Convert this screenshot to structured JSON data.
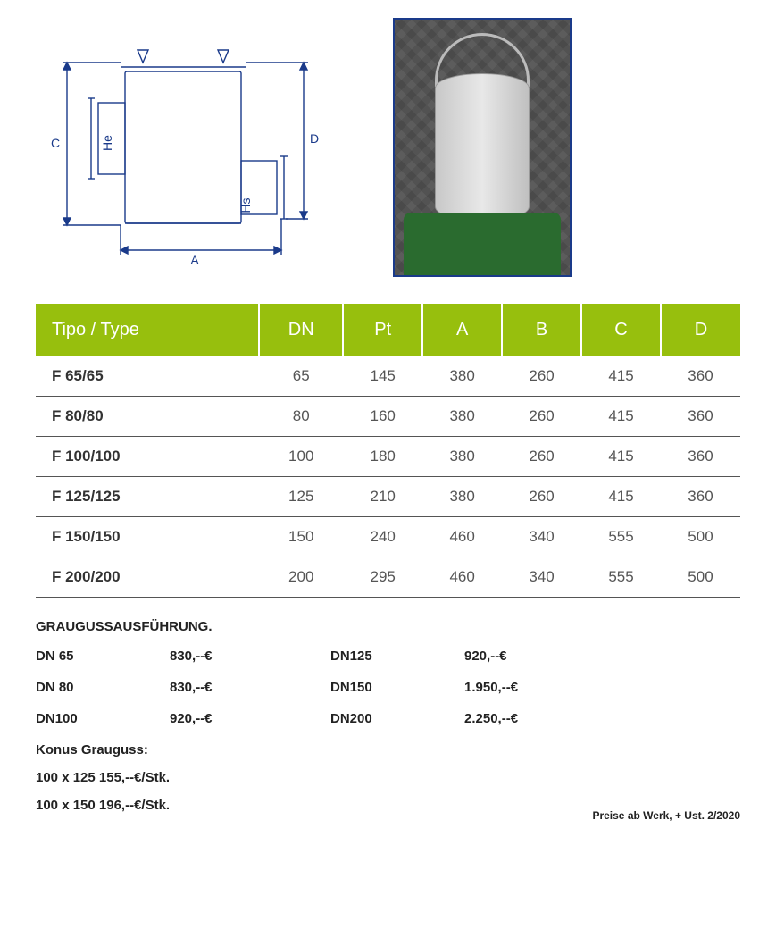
{
  "diagram": {
    "labels": {
      "A": "A",
      "C": "C",
      "D": "D",
      "He": "He",
      "Hs": "Hs"
    },
    "stroke": "#1a3a8a"
  },
  "table": {
    "header_bg": "#97bf0d",
    "header_fg": "#ffffff",
    "columns": [
      "Tipo / Type",
      "DN",
      "Pt",
      "A",
      "B",
      "C",
      "D"
    ],
    "rows": [
      [
        "F 65/65",
        "65",
        "145",
        "380",
        "260",
        "415",
        "360"
      ],
      [
        "F 80/80",
        "80",
        "160",
        "380",
        "260",
        "415",
        "360"
      ],
      [
        "F 100/100",
        "100",
        "180",
        "380",
        "260",
        "415",
        "360"
      ],
      [
        "F 125/125",
        "125",
        "210",
        "380",
        "260",
        "415",
        "360"
      ],
      [
        "F 150/150",
        "150",
        "240",
        "460",
        "340",
        "555",
        "500"
      ],
      [
        "F 200/200",
        "200",
        "295",
        "460",
        "340",
        "555",
        "500"
      ]
    ]
  },
  "pricing": {
    "title": "GRAUGUSSAUSFÜHRUNG.",
    "items": [
      {
        "label": "DN 65",
        "price": "830,--€"
      },
      {
        "label": "DN 80",
        "price": "830,--€"
      },
      {
        "label": "DN100",
        "price": "920,--€"
      },
      {
        "label": "DN125",
        "price": "920,--€"
      },
      {
        "label": "DN150",
        "price": "1.950,--€"
      },
      {
        "label": "DN200",
        "price": "2.250,--€"
      }
    ]
  },
  "konus": {
    "title": "Konus Grauguss:",
    "lines": [
      "100 x 125  155,--€/Stk.",
      "100 x 150  196,--€/Stk."
    ]
  },
  "footnote": "Preise ab Werk, + Ust.   2/2020"
}
